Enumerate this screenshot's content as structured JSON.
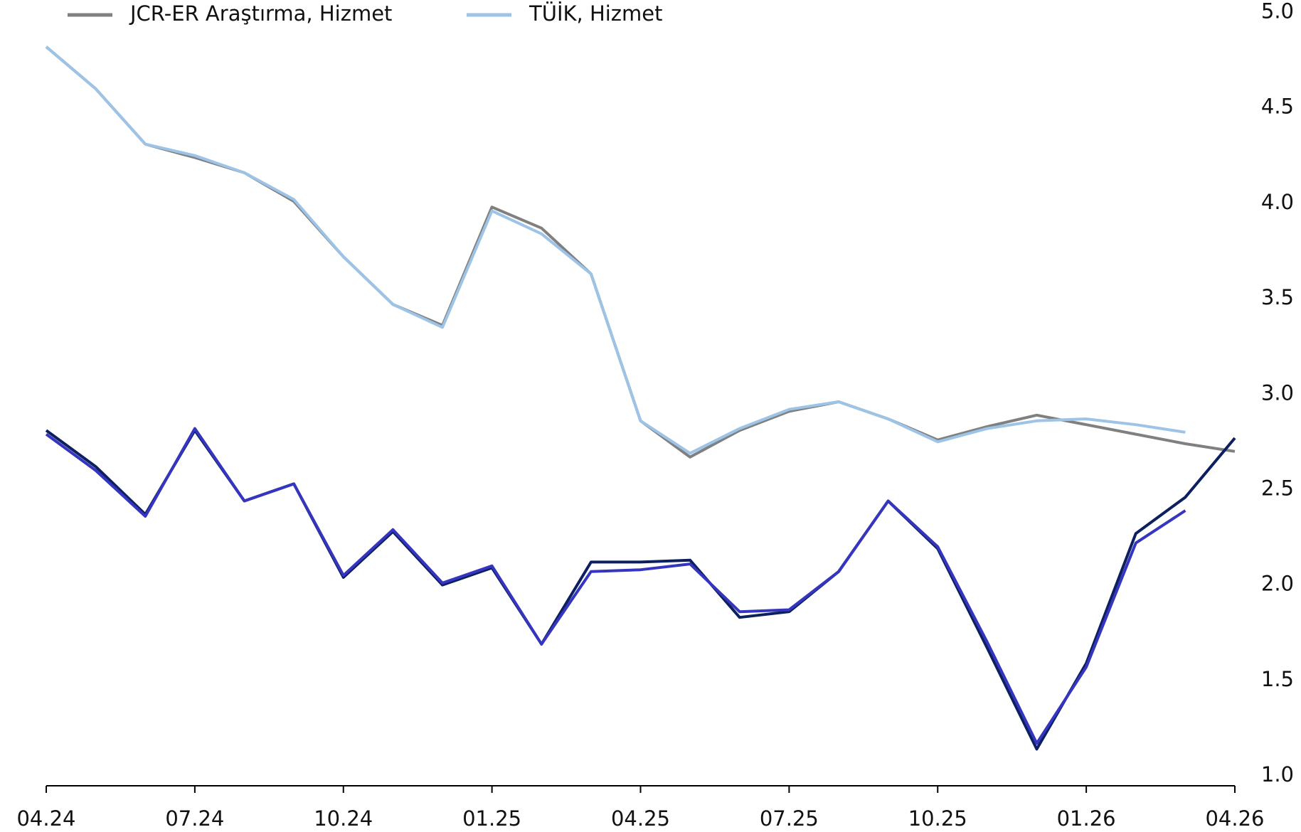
{
  "chart_data": {
    "type": "line",
    "categories": [
      "04.24",
      null,
      null,
      "07.24",
      null,
      null,
      "10.24",
      null,
      null,
      "01.25",
      null,
      null,
      "04.25",
      null,
      null,
      "07.25",
      null,
      null,
      "10.25",
      null,
      null,
      "01.26",
      null,
      null,
      "04.26"
    ],
    "series": [
      {
        "name": "JCR-ER Araştırma, Hizmet",
        "color": "#808080",
        "values": [
          4.82,
          4.6,
          4.31,
          4.24,
          4.16,
          4.01,
          3.72,
          3.47,
          3.36,
          3.98,
          3.87,
          3.63,
          2.86,
          2.67,
          2.81,
          2.91,
          2.96,
          2.87,
          2.76,
          2.83,
          2.89,
          2.84,
          2.79,
          2.74,
          2.7
        ]
      },
      {
        "name": "TÜİK, Hizmet",
        "color": "#9dc3e6",
        "values": [
          4.82,
          4.6,
          4.31,
          4.25,
          4.16,
          4.02,
          3.72,
          3.47,
          3.35,
          3.96,
          3.84,
          3.63,
          2.86,
          2.69,
          2.82,
          2.92,
          2.96,
          2.87,
          2.75,
          2.82,
          2.86,
          2.87,
          2.84,
          2.8,
          null
        ]
      },
      {
        "color": "#0c1f5e",
        "values": [
          2.81,
          2.62,
          2.37,
          2.81,
          2.44,
          2.53,
          2.04,
          2.28,
          2.0,
          2.09,
          1.69,
          2.12,
          2.12,
          2.13,
          1.83,
          1.86,
          2.07,
          2.44,
          2.19,
          1.67,
          1.14,
          1.59,
          2.27,
          2.46,
          2.77
        ]
      },
      {
        "color": "#3535c0",
        "values": [
          2.79,
          2.6,
          2.36,
          2.82,
          2.44,
          2.53,
          2.05,
          2.29,
          2.01,
          2.1,
          1.69,
          2.07,
          2.08,
          2.11,
          1.86,
          1.87,
          2.07,
          2.44,
          2.2,
          1.7,
          1.17,
          1.57,
          2.22,
          2.39,
          null
        ]
      }
    ],
    "ylim": [
      1,
      5
    ],
    "yticks": [
      {
        "value": 1,
        "label": "1.0"
      },
      1.5,
      {
        "value": 2,
        "label": "2.0"
      },
      2.5,
      {
        "value": 3,
        "label": "3.0"
      },
      3.5,
      {
        "value": 4,
        "label": "4.0"
      },
      4.5,
      {
        "value": 5,
        "label": "5.0"
      }
    ]
  }
}
